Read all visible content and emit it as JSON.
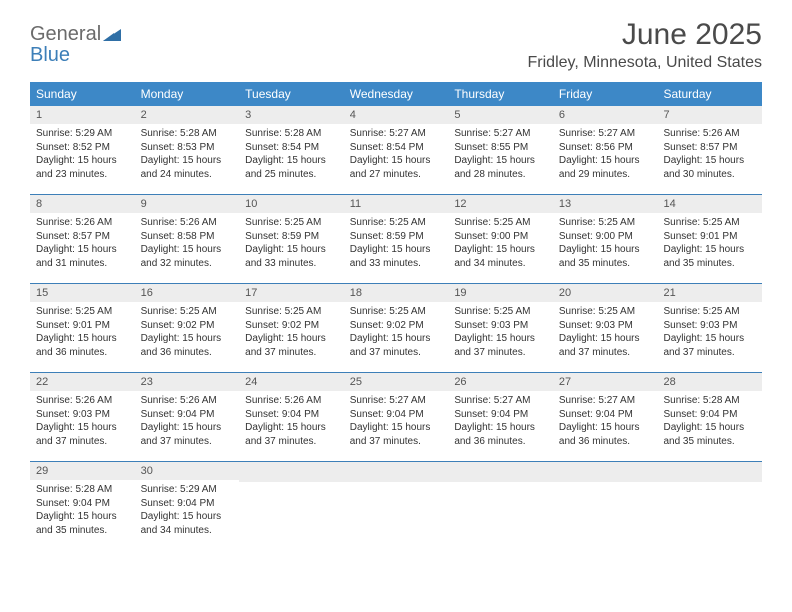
{
  "logo": {
    "general": "General",
    "blue": "Blue"
  },
  "title": "June 2025",
  "location": "Fridley, Minnesota, United States",
  "colors": {
    "header_bg": "#3d88c7",
    "header_text": "#ffffff",
    "daynum_bg": "#ededed",
    "border": "#3d7fb8",
    "text": "#333333",
    "logo_gray": "#6b6b6b",
    "logo_blue": "#3d7fb8"
  },
  "day_names": [
    "Sunday",
    "Monday",
    "Tuesday",
    "Wednesday",
    "Thursday",
    "Friday",
    "Saturday"
  ],
  "weeks": [
    [
      {
        "num": "1",
        "sunrise": "Sunrise: 5:29 AM",
        "sunset": "Sunset: 8:52 PM",
        "daylight": "Daylight: 15 hours and 23 minutes."
      },
      {
        "num": "2",
        "sunrise": "Sunrise: 5:28 AM",
        "sunset": "Sunset: 8:53 PM",
        "daylight": "Daylight: 15 hours and 24 minutes."
      },
      {
        "num": "3",
        "sunrise": "Sunrise: 5:28 AM",
        "sunset": "Sunset: 8:54 PM",
        "daylight": "Daylight: 15 hours and 25 minutes."
      },
      {
        "num": "4",
        "sunrise": "Sunrise: 5:27 AM",
        "sunset": "Sunset: 8:54 PM",
        "daylight": "Daylight: 15 hours and 27 minutes."
      },
      {
        "num": "5",
        "sunrise": "Sunrise: 5:27 AM",
        "sunset": "Sunset: 8:55 PM",
        "daylight": "Daylight: 15 hours and 28 minutes."
      },
      {
        "num": "6",
        "sunrise": "Sunrise: 5:27 AM",
        "sunset": "Sunset: 8:56 PM",
        "daylight": "Daylight: 15 hours and 29 minutes."
      },
      {
        "num": "7",
        "sunrise": "Sunrise: 5:26 AM",
        "sunset": "Sunset: 8:57 PM",
        "daylight": "Daylight: 15 hours and 30 minutes."
      }
    ],
    [
      {
        "num": "8",
        "sunrise": "Sunrise: 5:26 AM",
        "sunset": "Sunset: 8:57 PM",
        "daylight": "Daylight: 15 hours and 31 minutes."
      },
      {
        "num": "9",
        "sunrise": "Sunrise: 5:26 AM",
        "sunset": "Sunset: 8:58 PM",
        "daylight": "Daylight: 15 hours and 32 minutes."
      },
      {
        "num": "10",
        "sunrise": "Sunrise: 5:25 AM",
        "sunset": "Sunset: 8:59 PM",
        "daylight": "Daylight: 15 hours and 33 minutes."
      },
      {
        "num": "11",
        "sunrise": "Sunrise: 5:25 AM",
        "sunset": "Sunset: 8:59 PM",
        "daylight": "Daylight: 15 hours and 33 minutes."
      },
      {
        "num": "12",
        "sunrise": "Sunrise: 5:25 AM",
        "sunset": "Sunset: 9:00 PM",
        "daylight": "Daylight: 15 hours and 34 minutes."
      },
      {
        "num": "13",
        "sunrise": "Sunrise: 5:25 AM",
        "sunset": "Sunset: 9:00 PM",
        "daylight": "Daylight: 15 hours and 35 minutes."
      },
      {
        "num": "14",
        "sunrise": "Sunrise: 5:25 AM",
        "sunset": "Sunset: 9:01 PM",
        "daylight": "Daylight: 15 hours and 35 minutes."
      }
    ],
    [
      {
        "num": "15",
        "sunrise": "Sunrise: 5:25 AM",
        "sunset": "Sunset: 9:01 PM",
        "daylight": "Daylight: 15 hours and 36 minutes."
      },
      {
        "num": "16",
        "sunrise": "Sunrise: 5:25 AM",
        "sunset": "Sunset: 9:02 PM",
        "daylight": "Daylight: 15 hours and 36 minutes."
      },
      {
        "num": "17",
        "sunrise": "Sunrise: 5:25 AM",
        "sunset": "Sunset: 9:02 PM",
        "daylight": "Daylight: 15 hours and 37 minutes."
      },
      {
        "num": "18",
        "sunrise": "Sunrise: 5:25 AM",
        "sunset": "Sunset: 9:02 PM",
        "daylight": "Daylight: 15 hours and 37 minutes."
      },
      {
        "num": "19",
        "sunrise": "Sunrise: 5:25 AM",
        "sunset": "Sunset: 9:03 PM",
        "daylight": "Daylight: 15 hours and 37 minutes."
      },
      {
        "num": "20",
        "sunrise": "Sunrise: 5:25 AM",
        "sunset": "Sunset: 9:03 PM",
        "daylight": "Daylight: 15 hours and 37 minutes."
      },
      {
        "num": "21",
        "sunrise": "Sunrise: 5:25 AM",
        "sunset": "Sunset: 9:03 PM",
        "daylight": "Daylight: 15 hours and 37 minutes."
      }
    ],
    [
      {
        "num": "22",
        "sunrise": "Sunrise: 5:26 AM",
        "sunset": "Sunset: 9:03 PM",
        "daylight": "Daylight: 15 hours and 37 minutes."
      },
      {
        "num": "23",
        "sunrise": "Sunrise: 5:26 AM",
        "sunset": "Sunset: 9:04 PM",
        "daylight": "Daylight: 15 hours and 37 minutes."
      },
      {
        "num": "24",
        "sunrise": "Sunrise: 5:26 AM",
        "sunset": "Sunset: 9:04 PM",
        "daylight": "Daylight: 15 hours and 37 minutes."
      },
      {
        "num": "25",
        "sunrise": "Sunrise: 5:27 AM",
        "sunset": "Sunset: 9:04 PM",
        "daylight": "Daylight: 15 hours and 37 minutes."
      },
      {
        "num": "26",
        "sunrise": "Sunrise: 5:27 AM",
        "sunset": "Sunset: 9:04 PM",
        "daylight": "Daylight: 15 hours and 36 minutes."
      },
      {
        "num": "27",
        "sunrise": "Sunrise: 5:27 AM",
        "sunset": "Sunset: 9:04 PM",
        "daylight": "Daylight: 15 hours and 36 minutes."
      },
      {
        "num": "28",
        "sunrise": "Sunrise: 5:28 AM",
        "sunset": "Sunset: 9:04 PM",
        "daylight": "Daylight: 15 hours and 35 minutes."
      }
    ],
    [
      {
        "num": "29",
        "sunrise": "Sunrise: 5:28 AM",
        "sunset": "Sunset: 9:04 PM",
        "daylight": "Daylight: 15 hours and 35 minutes."
      },
      {
        "num": "30",
        "sunrise": "Sunrise: 5:29 AM",
        "sunset": "Sunset: 9:04 PM",
        "daylight": "Daylight: 15 hours and 34 minutes."
      },
      {
        "empty": true
      },
      {
        "empty": true
      },
      {
        "empty": true
      },
      {
        "empty": true
      },
      {
        "empty": true
      }
    ]
  ]
}
